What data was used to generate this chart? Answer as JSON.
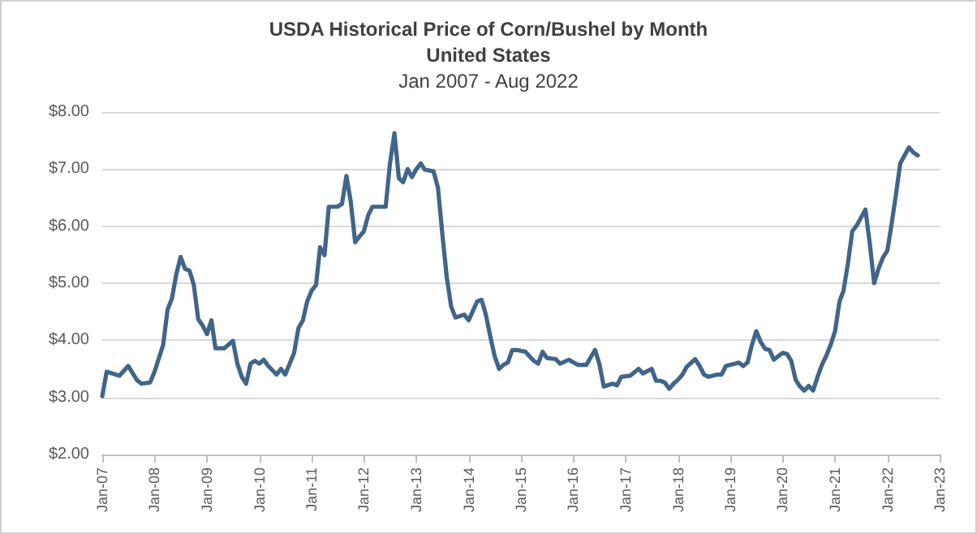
{
  "chart_data": {
    "type": "line",
    "title": "USDA Historical Price of Corn/Bushel by Month\nUnited States",
    "subtitle": "Jan 2007 - Aug 2022",
    "x": [
      "2007-01",
      "2007-02",
      "2007-05",
      "2007-07",
      "2007-09",
      "2007-10",
      "2007-12",
      "2008-01",
      "2008-03",
      "2008-04",
      "2008-05",
      "2008-06",
      "2008-07",
      "2008-08",
      "2008-09",
      "2008-10",
      "2008-11",
      "2008-12",
      "2009-01",
      "2009-02",
      "2009-03",
      "2009-05",
      "2009-07",
      "2009-08",
      "2009-09",
      "2009-10",
      "2009-11",
      "2009-12",
      "2010-01",
      "2010-02",
      "2010-03",
      "2010-05",
      "2010-06",
      "2010-07",
      "2010-08",
      "2010-09",
      "2010-10",
      "2010-11",
      "2010-12",
      "2011-01",
      "2011-02",
      "2011-03",
      "2011-04",
      "2011-05",
      "2011-07",
      "2011-08",
      "2011-09",
      "2011-10",
      "2011-11",
      "2011-12",
      "2012-01",
      "2012-02",
      "2012-03",
      "2012-06",
      "2012-07",
      "2012-08",
      "2012-09",
      "2012-10",
      "2012-11",
      "2012-12",
      "2013-01",
      "2013-02",
      "2013-03",
      "2013-05",
      "2013-06",
      "2013-07",
      "2013-08",
      "2013-09",
      "2013-10",
      "2013-12",
      "2014-01",
      "2014-03",
      "2014-04",
      "2014-05",
      "2014-06",
      "2014-07",
      "2014-08",
      "2014-09",
      "2014-10",
      "2014-11",
      "2014-12",
      "2015-02",
      "2015-04",
      "2015-05",
      "2015-06",
      "2015-07",
      "2015-09",
      "2015-10",
      "2015-12",
      "2016-02",
      "2016-04",
      "2016-06",
      "2016-07",
      "2016-08",
      "2016-10",
      "2016-11",
      "2016-12",
      "2017-02",
      "2017-04",
      "2017-05",
      "2017-07",
      "2017-08",
      "2017-09",
      "2017-10",
      "2017-11",
      "2017-12",
      "2018-01",
      "2018-02",
      "2018-03",
      "2018-05",
      "2018-06",
      "2018-07",
      "2018-08",
      "2018-09",
      "2018-10",
      "2018-11",
      "2018-12",
      "2019-01",
      "2019-02",
      "2019-03",
      "2019-04",
      "2019-05",
      "2019-06",
      "2019-07",
      "2019-08",
      "2019-09",
      "2019-10",
      "2019-11",
      "2019-12",
      "2020-01",
      "2020-02",
      "2020-03",
      "2020-04",
      "2020-05",
      "2020-06",
      "2020-07",
      "2020-08",
      "2020-09",
      "2020-10",
      "2020-11",
      "2020-12",
      "2021-01",
      "2021-02",
      "2021-03",
      "2021-04",
      "2021-05",
      "2021-06",
      "2021-07",
      "2021-08",
      "2021-09",
      "2021-10",
      "2021-11",
      "2021-12",
      "2022-01",
      "2022-02",
      "2022-03",
      "2022-04",
      "2022-05",
      "2022-06",
      "2022-07",
      "2022-08"
    ],
    "series": [
      {
        "color": "#41658a",
        "values": [
          3.02,
          3.45,
          3.38,
          3.55,
          3.3,
          3.24,
          3.26,
          3.45,
          3.92,
          4.54,
          4.73,
          5.16,
          5.46,
          5.25,
          5.22,
          4.97,
          4.37,
          4.26,
          4.11,
          4.35,
          3.86,
          3.86,
          3.99,
          3.59,
          3.36,
          3.24,
          3.59,
          3.64,
          3.59,
          3.66,
          3.56,
          3.4,
          3.5,
          3.4,
          3.59,
          3.78,
          4.21,
          4.35,
          4.68,
          4.87,
          4.97,
          5.63,
          5.49,
          6.34,
          6.34,
          6.39,
          6.88,
          6.43,
          5.72,
          5.82,
          5.91,
          6.2,
          6.34,
          6.34,
          7.1,
          7.63,
          6.84,
          6.77,
          7.0,
          6.86,
          7.0,
          7.1,
          6.99,
          6.96,
          6.67,
          5.87,
          5.11,
          4.59,
          4.4,
          4.45,
          4.35,
          4.68,
          4.71,
          4.45,
          4.07,
          3.73,
          3.5,
          3.57,
          3.61,
          3.83,
          3.83,
          3.8,
          3.64,
          3.59,
          3.8,
          3.69,
          3.67,
          3.59,
          3.66,
          3.57,
          3.57,
          3.83,
          3.59,
          3.19,
          3.24,
          3.21,
          3.36,
          3.38,
          3.5,
          3.42,
          3.5,
          3.29,
          3.29,
          3.26,
          3.15,
          3.24,
          3.31,
          3.4,
          3.53,
          3.67,
          3.55,
          3.4,
          3.36,
          3.38,
          3.4,
          3.4,
          3.55,
          3.57,
          3.59,
          3.61,
          3.55,
          3.61,
          3.92,
          4.16,
          3.97,
          3.85,
          3.83,
          3.66,
          3.72,
          3.78,
          3.76,
          3.64,
          3.31,
          3.19,
          3.12,
          3.2,
          3.12,
          3.36,
          3.57,
          3.73,
          3.92,
          4.16,
          4.68,
          4.87,
          5.35,
          5.91,
          6.01,
          6.15,
          6.29,
          5.68,
          5.0,
          5.26,
          5.45,
          5.57,
          6.06,
          6.54,
          7.1,
          7.24,
          7.38,
          7.29,
          7.24
        ]
      }
    ],
    "xlim": [
      "2007-01",
      "2023-01"
    ],
    "xticks": [
      {
        "value": "2007-01",
        "label": "Jan-07"
      },
      {
        "value": "2008-01",
        "label": "Jan-08"
      },
      {
        "value": "2009-01",
        "label": "Jan-09"
      },
      {
        "value": "2010-01",
        "label": "Jan-10"
      },
      {
        "value": "2011-01",
        "label": "Jan-11"
      },
      {
        "value": "2012-01",
        "label": "Jan-12"
      },
      {
        "value": "2013-01",
        "label": "Jan-13"
      },
      {
        "value": "2014-01",
        "label": "Jan-14"
      },
      {
        "value": "2015-01",
        "label": "Jan-15"
      },
      {
        "value": "2016-01",
        "label": "Jan-16"
      },
      {
        "value": "2017-01",
        "label": "Jan-17"
      },
      {
        "value": "2018-01",
        "label": "Jan-18"
      },
      {
        "value": "2019-01",
        "label": "Jan-19"
      },
      {
        "value": "2020-01",
        "label": "Jan-20"
      },
      {
        "value": "2021-01",
        "label": "Jan-21"
      },
      {
        "value": "2022-01",
        "label": "Jan-22"
      },
      {
        "value": "2023-01",
        "label": "Jan-23"
      }
    ],
    "ylim": [
      2,
      8
    ],
    "yticks": [
      {
        "value": 2,
        "label": "$2.00"
      },
      {
        "value": 3,
        "label": "$3.00"
      },
      {
        "value": 4,
        "label": "$4.00"
      },
      {
        "value": 5,
        "label": "$5.00"
      },
      {
        "value": 6,
        "label": "$6.00"
      },
      {
        "value": 7,
        "label": "$7.00"
      },
      {
        "value": 8,
        "label": "$8.00"
      }
    ],
    "grid": "y",
    "marker": "none",
    "line_style": "solid"
  }
}
